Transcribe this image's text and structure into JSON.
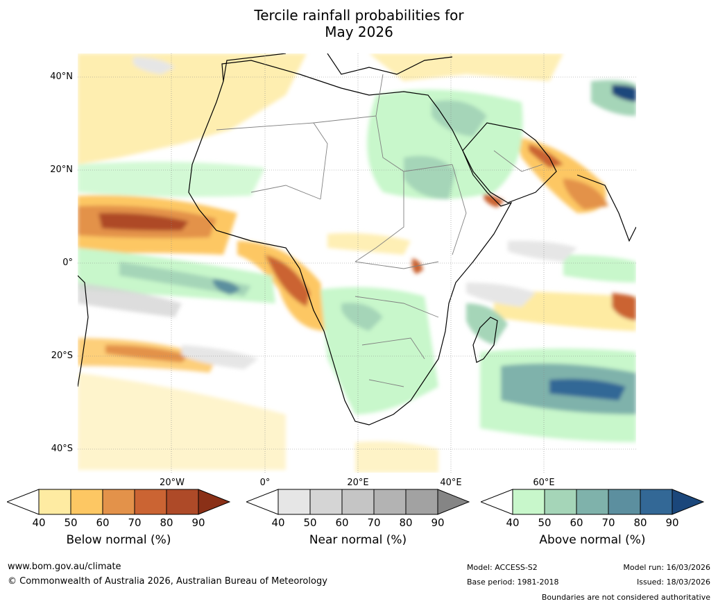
{
  "title": {
    "line1": "Tercile rainfall probabilities for",
    "line2": "May 2026"
  },
  "map": {
    "lat_labels": [
      "40°N",
      "20°N",
      "0°",
      "20°S",
      "40°S"
    ],
    "lon_labels": [
      "20°W",
      "0°",
      "20°E",
      "40°E",
      "60°E"
    ]
  },
  "colorbars": [
    {
      "id": "below",
      "label": "Below normal (%)",
      "ticks": [
        "40",
        "50",
        "60",
        "70",
        "80",
        "90"
      ],
      "colors": [
        "#ffffff",
        "#feeba2",
        "#fdc763",
        "#e3924a",
        "#cb6433",
        "#ae4a28",
        "#8a3017"
      ]
    },
    {
      "id": "near",
      "label": "Near normal (%)",
      "ticks": [
        "40",
        "50",
        "60",
        "70",
        "80",
        "90"
      ],
      "colors": [
        "#ffffff",
        "#e6e6e6",
        "#d5d5d5",
        "#c5c5c5",
        "#b3b3b3",
        "#a2a2a2",
        "#858585"
      ]
    },
    {
      "id": "above",
      "label": "Above normal (%)",
      "ticks": [
        "40",
        "50",
        "60",
        "70",
        "80",
        "90"
      ],
      "colors": [
        "#ffffff",
        "#c8f7cb",
        "#a5d5b8",
        "#7fb2ab",
        "#5c8f9f",
        "#336896",
        "#1b477b"
      ]
    }
  ],
  "footer": {
    "website": "www.bom.gov.au/climate",
    "copyright": "© Commonwealth of Australia 2026, Australian Bureau of Meteorology",
    "model": "Model: ACCESS-S2",
    "base_period": "Base period: 1981-2018",
    "model_run": "Model run: 16/03/2026",
    "issued": "Issued: 18/03/2026",
    "disclaimer": "Boundaries are not considered authoritative"
  }
}
